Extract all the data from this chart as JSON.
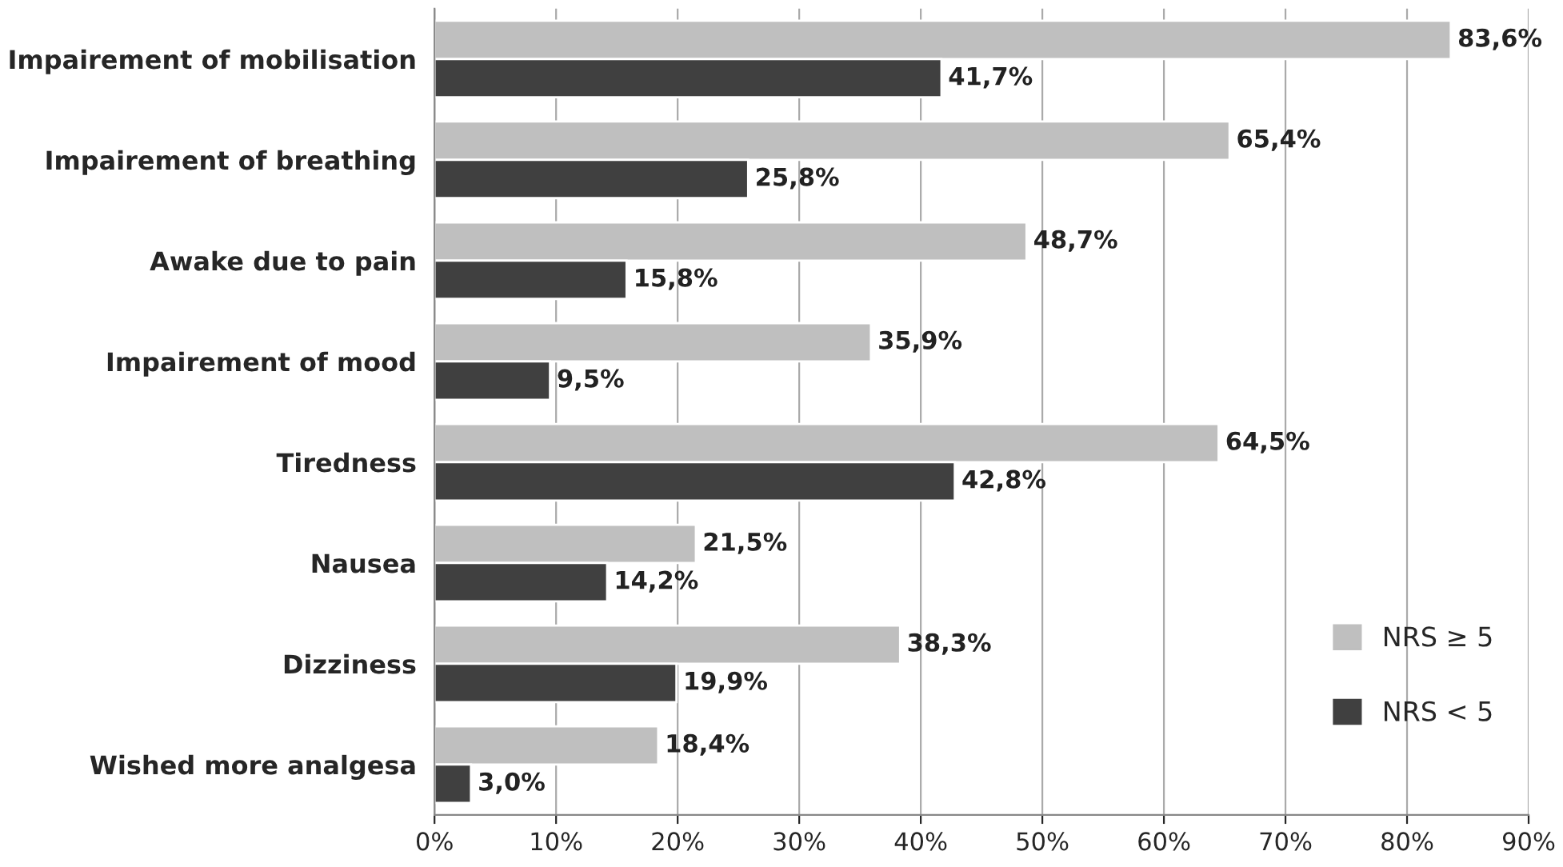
{
  "chart_data": {
    "type": "bar",
    "orientation": "horizontal",
    "categories": [
      "Impairement of mobilisation",
      "Impairement of breathing",
      "Awake due to pain",
      "Impairement of mood",
      "Tiredness",
      "Nausea",
      "Dizziness",
      "Wished more analgesa"
    ],
    "series": [
      {
        "name": "NRS ≥ 5",
        "color": "#bfbfbf",
        "values": [
          83.6,
          65.4,
          48.7,
          35.9,
          64.5,
          21.5,
          38.3,
          18.4
        ],
        "value_labels": [
          "83,6%",
          "65,4%",
          "48,7%",
          "35,9%",
          "64,5%",
          "21,5%",
          "38,3%",
          "18,4%"
        ]
      },
      {
        "name": "NRS < 5",
        "color": "#404040",
        "values": [
          41.7,
          25.8,
          15.8,
          9.5,
          42.8,
          14.2,
          19.9,
          3.0
        ],
        "value_labels": [
          "41,7%",
          "25,8%",
          "15,8%",
          "9,5%",
          "42,8%",
          "14,2%",
          "19,9%",
          "3,0%"
        ]
      }
    ],
    "xlim": [
      0,
      90
    ],
    "xticks": [
      {
        "value": 0,
        "label": "0%"
      },
      {
        "value": 10,
        "label": "10%"
      },
      {
        "value": 20,
        "label": "20%"
      },
      {
        "value": 30,
        "label": "30%"
      },
      {
        "value": 40,
        "label": "40%"
      },
      {
        "value": 50,
        "label": "50%"
      },
      {
        "value": 60,
        "label": "60%"
      },
      {
        "value": 70,
        "label": "70%"
      },
      {
        "value": 80,
        "label": "80%"
      },
      {
        "value": 90,
        "label": "90%"
      }
    ],
    "grid": "x",
    "legend": "bottom right"
  }
}
